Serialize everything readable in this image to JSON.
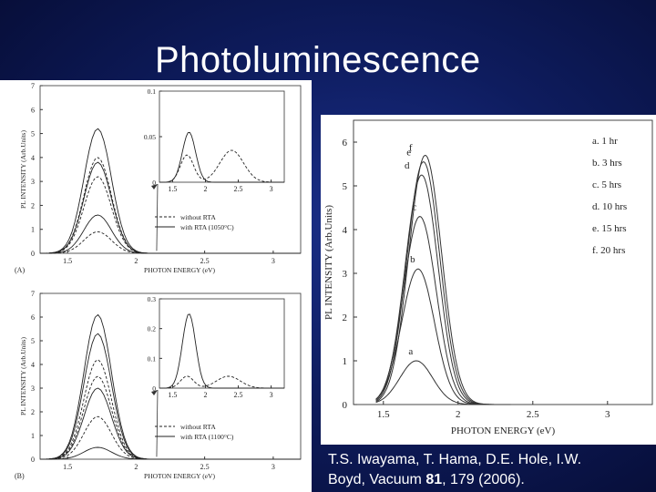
{
  "slide": {
    "title": "Photoluminescence",
    "citation_line1": "T.S. Iwayama, T. Hama, D.E. Hole, I.W.",
    "citation_line2_pre": "Boyd, Vacuum ",
    "citation_volume": "81",
    "citation_line2_post": ", 179 (2006)."
  },
  "chart_data": [
    {
      "id": "A",
      "type": "line",
      "panel_label": "(A)",
      "xlabel": "PHOTON ENERGY (eV)",
      "ylabel": "PL INTENSITY (Arb.Units)",
      "xlim": [
        1.3,
        3.2
      ],
      "ylim": [
        0,
        7
      ],
      "xticks": [
        "1.5",
        "2",
        "2.5",
        "3"
      ],
      "yticks": [
        "0",
        "1",
        "2",
        "3",
        "4",
        "5",
        "6",
        "7"
      ],
      "peak_energy": 1.72,
      "series": [
        {
          "style": "solid",
          "peak": 5.2
        },
        {
          "style": "dashed",
          "peak": 4.0
        },
        {
          "style": "solid",
          "peak": 3.8
        },
        {
          "style": "dashed",
          "peak": 3.2
        },
        {
          "style": "solid",
          "peak": 1.6
        },
        {
          "style": "dashed",
          "peak": 0.9
        }
      ],
      "inset": {
        "xticks": [
          "1.5",
          "2",
          "2.5",
          "3"
        ],
        "yticks": [
          "0",
          "0.05",
          "0.1"
        ],
        "xlim": [
          1.3,
          3.2
        ],
        "ylim": [
          0,
          0.1
        ],
        "series": [
          {
            "style": "solid",
            "peak_x": 1.75,
            "peak": 0.055,
            "second_peak_x": 2.5,
            "second_peak": 0.0
          },
          {
            "style": "dashed",
            "peak_x": 1.72,
            "peak": 0.03,
            "second_peak_x": 2.4,
            "second_peak": 0.035
          }
        ]
      },
      "legend": [
        {
          "style": "dashed",
          "label": "without RTA"
        },
        {
          "style": "solid",
          "label": "with RTA (1050°C)"
        }
      ]
    },
    {
      "id": "B",
      "type": "line",
      "panel_label": "(B)",
      "xlabel": "PHOTON ENERGY (eV)",
      "ylabel": "PL INTENSITY (Arb.Units)",
      "xlim": [
        1.3,
        3.2
      ],
      "ylim": [
        0,
        7
      ],
      "xticks": [
        "1.5",
        "2",
        "2.5",
        "3"
      ],
      "yticks": [
        "0",
        "1",
        "2",
        "3",
        "4",
        "5",
        "6",
        "7"
      ],
      "peak_energy": 1.72,
      "series": [
        {
          "style": "solid",
          "peak": 6.1
        },
        {
          "style": "solid",
          "peak": 5.3
        },
        {
          "style": "dashed",
          "peak": 4.2
        },
        {
          "style": "dashed",
          "peak": 3.5
        },
        {
          "style": "solid",
          "peak": 3.0
        },
        {
          "style": "dashed",
          "peak": 1.8
        },
        {
          "style": "solid",
          "peak": 0.5
        }
      ],
      "inset": {
        "xticks": [
          "1.5",
          "2",
          "2.5",
          "3"
        ],
        "yticks": [
          "0",
          "0.1",
          "0.2",
          "0.3"
        ],
        "xlim": [
          1.3,
          3.2
        ],
        "ylim": [
          0,
          0.3
        ],
        "series": [
          {
            "style": "solid",
            "peak_x": 1.75,
            "peak": 0.25,
            "second_peak_x": 2.5,
            "second_peak": 0.0
          },
          {
            "style": "dashed",
            "peak_x": 1.72,
            "peak": 0.04,
            "second_peak_x": 2.35,
            "second_peak": 0.04
          }
        ]
      },
      "legend": [
        {
          "style": "dashed",
          "label": "without RTA"
        },
        {
          "style": "solid",
          "label": "with RTA (1100°C)"
        }
      ]
    },
    {
      "id": "C",
      "type": "line",
      "xlabel": "PHOTON ENERGY (eV)",
      "ylabel": "PL INTENSITY (Arb.Units)",
      "xlim": [
        1.3,
        3.3
      ],
      "ylim": [
        0,
        6.5
      ],
      "xticks": [
        "1.5",
        "2",
        "2.5",
        "3"
      ],
      "yticks": [
        "0",
        "1",
        "2",
        "3",
        "4",
        "5",
        "6"
      ],
      "peak_energy": 1.72,
      "series": [
        {
          "name": "a. 1 hr",
          "letter": "a",
          "peak": 1.0
        },
        {
          "name": "b. 3 hrs",
          "letter": "b",
          "peak": 3.1
        },
        {
          "name": "c. 5 hrs",
          "letter": "c",
          "peak": 4.3
        },
        {
          "name": "d. 10 hrs",
          "letter": "d",
          "peak": 5.25
        },
        {
          "name": "e. 15 hrs",
          "letter": "e",
          "peak": 5.55
        },
        {
          "name": "f. 20 hrs",
          "letter": "f",
          "peak": 5.7
        }
      ]
    }
  ]
}
